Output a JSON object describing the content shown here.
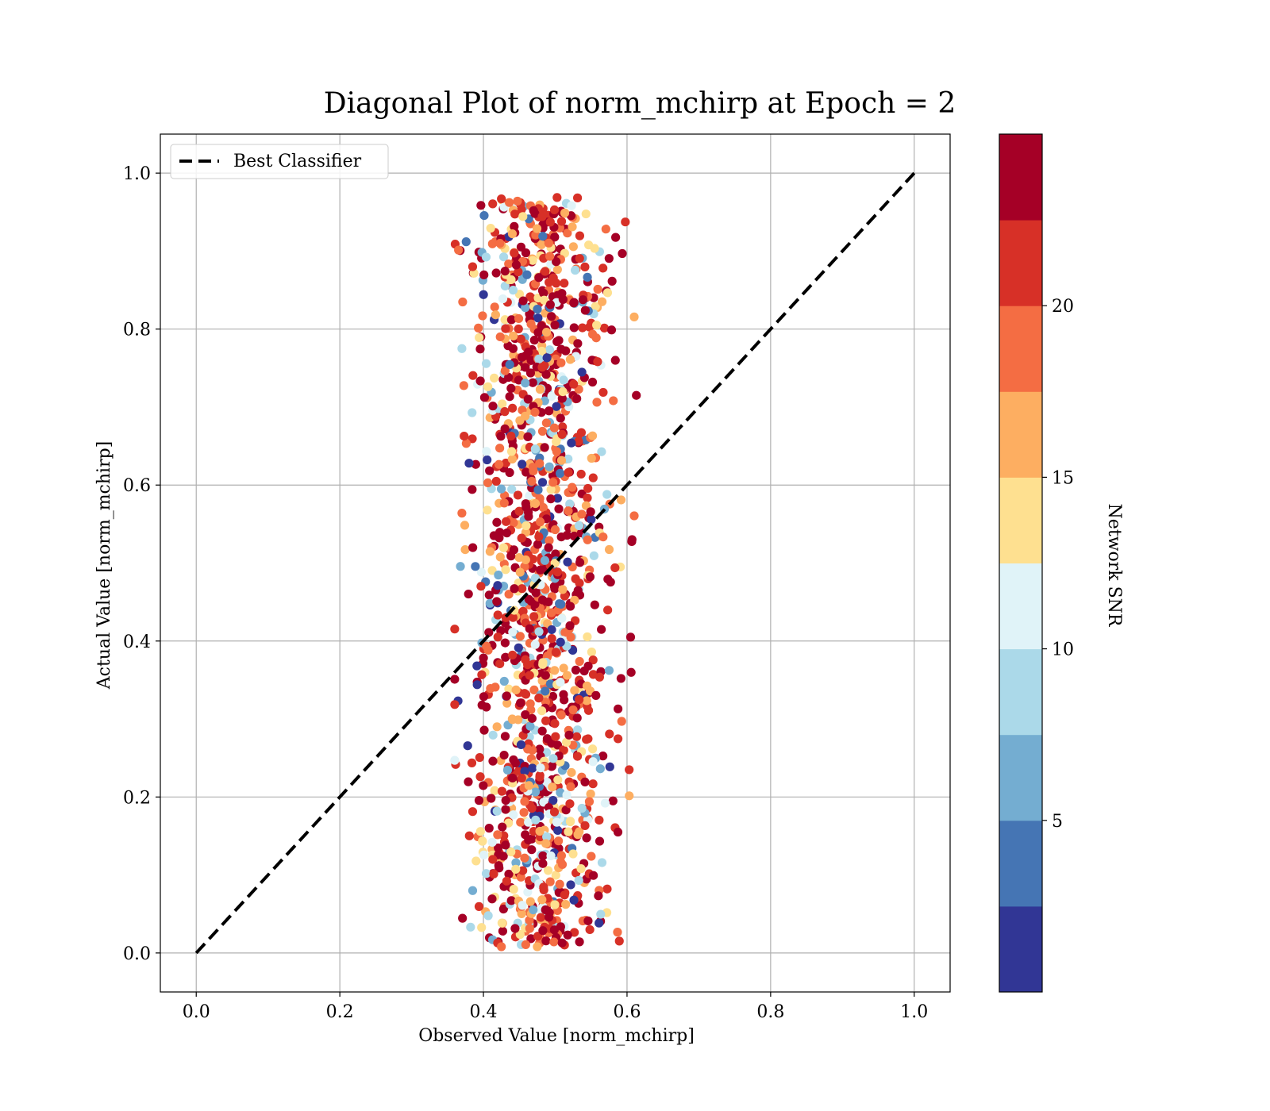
{
  "chart_data": {
    "type": "scatter",
    "title": "Diagonal Plot of norm_mchirp at Epoch = 2",
    "xlabel": "Observed Value [norm_mchirp]",
    "ylabel": "Actual Value [norm_mchirp]",
    "xlim": [
      -0.05,
      1.05
    ],
    "ylim": [
      -0.05,
      1.05
    ],
    "xticks": [
      "0.0",
      "0.2",
      "0.4",
      "0.6",
      "0.8",
      "1.0"
    ],
    "yticks": [
      "0.0",
      "0.2",
      "0.4",
      "0.6",
      "0.8",
      "1.0"
    ],
    "grid": true,
    "legend": {
      "placement": "upper-left",
      "entries": [
        "Best Classifier"
      ]
    },
    "reference_line": {
      "name": "Best Classifier",
      "style": "dashed",
      "color": "#000000",
      "x": [
        0.0,
        1.0
      ],
      "y": [
        0.0,
        1.0
      ]
    },
    "colorbar": {
      "label": "Network SNR",
      "min": 0,
      "max": 25,
      "ticks": [
        "5",
        "10",
        "15",
        "20"
      ],
      "tick_values": [
        5,
        10,
        15,
        20
      ],
      "bins": [
        "#313695",
        "#4575b4",
        "#74add1",
        "#abd9e9",
        "#e0f3f8",
        "#fee090",
        "#fdae61",
        "#f46d43",
        "#d73027",
        "#a50026"
      ]
    },
    "scatter_description": {
      "x_center": 0.48,
      "x_spread": 0.045,
      "x_range": [
        0.36,
        0.61
      ],
      "y_range": [
        0.01,
        0.97
      ],
      "point_count": 1500
    },
    "sample_points": [
      {
        "x": 0.385,
        "y": 0.88,
        "snr": 22
      },
      {
        "x": 0.37,
        "y": 0.775,
        "snr": 9
      },
      {
        "x": 0.38,
        "y": 0.628,
        "snr": 1
      },
      {
        "x": 0.37,
        "y": 0.564,
        "snr": 18
      },
      {
        "x": 0.36,
        "y": 0.247,
        "snr": 11
      },
      {
        "x": 0.385,
        "y": 0.08,
        "snr": 7
      },
      {
        "x": 0.613,
        "y": 0.715,
        "snr": 24
      },
      {
        "x": 0.607,
        "y": 0.53,
        "snr": 24
      },
      {
        "x": 0.605,
        "y": 0.405,
        "snr": 24
      },
      {
        "x": 0.603,
        "y": 0.235,
        "snr": 22
      },
      {
        "x": 0.425,
        "y": 0.967,
        "snr": 22
      },
      {
        "x": 0.475,
        "y": 0.008,
        "snr": 17
      },
      {
        "x": 0.425,
        "y": 0.008,
        "snr": 19
      }
    ]
  }
}
